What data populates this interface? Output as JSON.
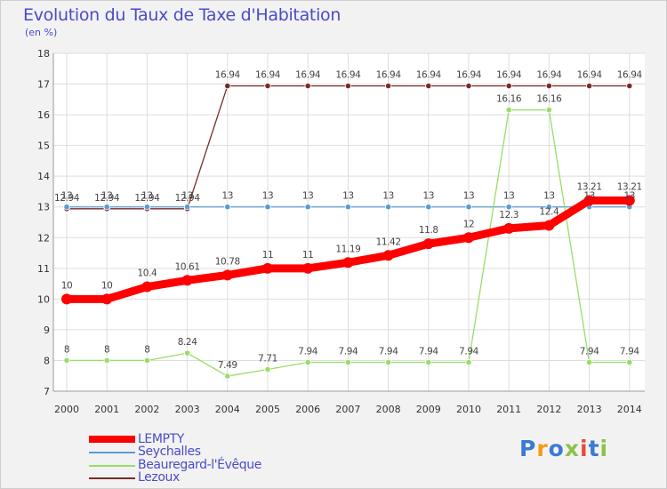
{
  "header": {
    "title": "Evolution du Taux de Taxe d'Habitation",
    "subtitle": "(en %)"
  },
  "chart_data": {
    "type": "line",
    "x": [
      "2000",
      "2001",
      "2002",
      "2003",
      "2004",
      "2005",
      "2006",
      "2007",
      "2008",
      "2009",
      "2010",
      "2011",
      "2012",
      "2013",
      "2014"
    ],
    "y_ticks": [
      "7",
      "8",
      "9",
      "10",
      "11",
      "12",
      "13",
      "14",
      "15",
      "16",
      "17",
      "18"
    ],
    "ylim": [
      7,
      18
    ],
    "grid": true,
    "legend_position": "bottom-left",
    "series": [
      {
        "name": "LEMPTY",
        "color": "#ff0000",
        "values": [
          10,
          10,
          10.4,
          10.61,
          10.78,
          11,
          11,
          11.19,
          11.42,
          11.8,
          12,
          12.3,
          12.4,
          13.21,
          13.21
        ],
        "labels": [
          "10",
          "10",
          "10.4",
          "10.61",
          "10.78",
          "11",
          "11",
          "11.19",
          "11.42",
          "11.8",
          "12",
          "12.3",
          "12.4",
          "13.21",
          "13.21"
        ]
      },
      {
        "name": "Seychalles",
        "color": "#5b9bd5",
        "values": [
          13,
          13,
          13,
          13,
          13,
          13,
          13,
          13,
          13,
          13,
          13,
          13,
          13,
          13,
          13
        ],
        "labels": [
          "13",
          "13",
          "13",
          "13",
          "13",
          "13",
          "13",
          "13",
          "13",
          "13",
          "13",
          "13",
          "13",
          "13",
          "13"
        ]
      },
      {
        "name": "Beauregard-l'Évêque",
        "color": "#99dd66",
        "values": [
          8,
          8,
          8,
          8.24,
          7.49,
          7.71,
          7.94,
          7.94,
          7.94,
          7.94,
          7.94,
          16.16,
          16.16,
          7.94,
          7.94
        ],
        "labels": [
          "8",
          "8",
          "8",
          "8.24",
          "7.49",
          "7.71",
          "7.94",
          "7.94",
          "7.94",
          "7.94",
          "7.94",
          "16.16",
          "16.16",
          "7.94",
          "7.94"
        ]
      },
      {
        "name": "Lezoux",
        "color": "#7a2a2a",
        "values": [
          12.94,
          12.94,
          12.94,
          12.94,
          16.94,
          16.94,
          16.94,
          16.94,
          16.94,
          16.94,
          16.94,
          16.94,
          16.94,
          16.94,
          16.94
        ],
        "labels": [
          "12.94",
          "12.94",
          "12.94",
          "12.94",
          "16.94",
          "16.94",
          "16.94",
          "16.94",
          "16.94",
          "16.94",
          "16.94",
          "16.94",
          "16.94",
          "16.94",
          "16.94"
        ]
      }
    ]
  },
  "logo": {
    "text": "Proxiti",
    "letter_colors": [
      "#3a7bd5",
      "#f39c12",
      "#3a7bd5",
      "#8bc34a",
      "#e74c3c",
      "#3a7bd5",
      "#8bc34a"
    ]
  }
}
